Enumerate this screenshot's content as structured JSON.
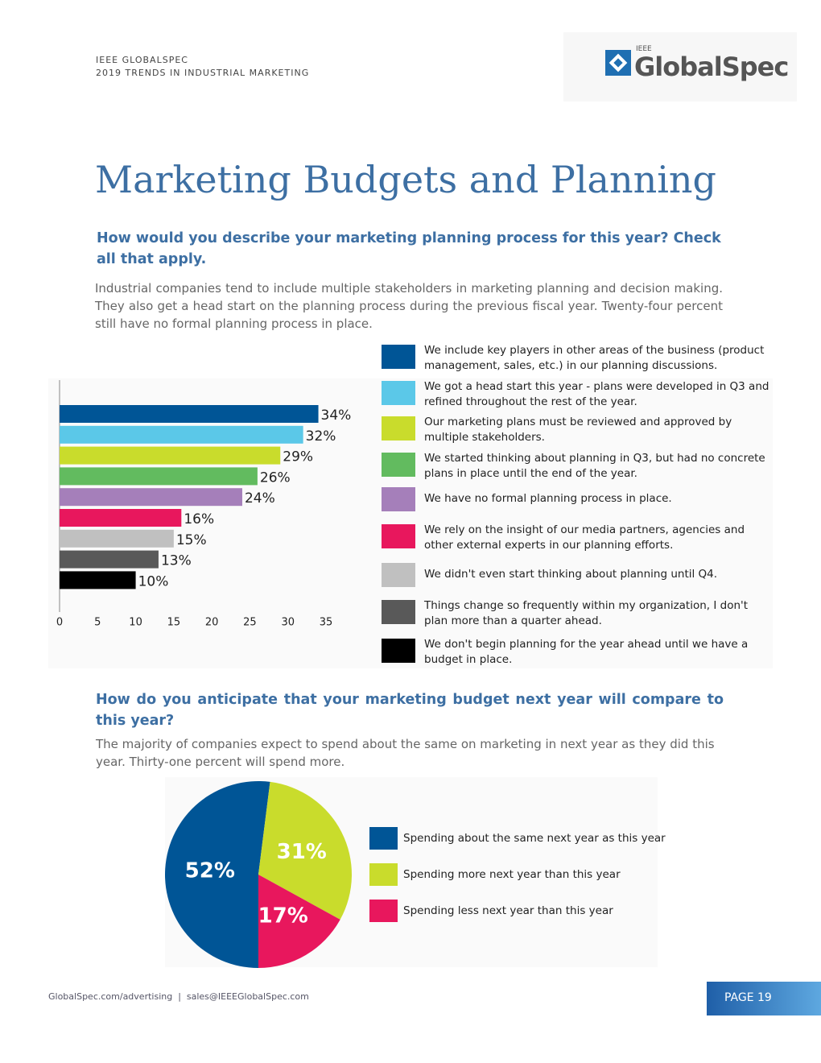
{
  "header": {
    "org": "IEEE GLOBALSPEC",
    "report": "2019 TRENDS IN INDUSTRIAL MARKETING"
  },
  "logo": {
    "small": "IEEE",
    "name": "GlobalSpec"
  },
  "title": "Marketing Budgets and Planning",
  "sections": [
    {
      "question": "How would you describe your marketing planning process for this year? Check all that apply.",
      "text": "Industrial companies tend to include multiple stakeholders in marketing planning and decision making. They also get a head start on the planning process during the previous fiscal year. Twenty-four percent still have no formal planning process in place."
    },
    {
      "question": "How do you anticipate that your marketing budget next year will compare to this year?",
      "text": "The majority of companies expect to spend about the same on marketing in next year as they did this year. Thirty-one percent will spend more."
    }
  ],
  "chart_data": [
    {
      "type": "bar",
      "orientation": "horizontal",
      "categories": [
        "We include key players in other areas of the business (product management, sales, etc.) in our planning discussions.",
        "We got a head start this year - plans were developed in Q3 and refined throughout the rest of the year.",
        "Our marketing plans must be reviewed and approved by multiple stakeholders.",
        "We started thinking about planning in Q3, but had no concrete plans in place until the end of the year.",
        "We have no formal planning process in place.",
        "We rely on the insight of our media partners, agencies and other external experts in our planning efforts.",
        "We didn't even start thinking about planning until Q4.",
        "Things change so frequently within my organization, I don't plan more than a quarter ahead.",
        "We don't begin planning for the year ahead until we have a budget in place."
      ],
      "values": [
        34,
        32,
        29,
        26,
        24,
        16,
        15,
        13,
        10
      ],
      "value_labels": [
        "34%",
        "32%",
        "29%",
        "26%",
        "24%",
        "16%",
        "15%",
        "13%",
        "10%"
      ],
      "colors": [
        "#005596",
        "#5bc8e8",
        "#c9dc2c",
        "#62bb5f",
        "#a57fba",
        "#e8175d",
        "#c0c0c0",
        "#595959",
        "#000000"
      ],
      "xlim": [
        0,
        35
      ],
      "xticks": [
        0,
        5,
        10,
        15,
        20,
        25,
        30,
        35
      ],
      "grid": false
    },
    {
      "type": "pie",
      "categories": [
        "Spending about the same next year as this year",
        "Spending more next year than this year",
        "Spending less next year than this year"
      ],
      "values": [
        52,
        31,
        17
      ],
      "value_labels": [
        "52%",
        "31%",
        "17%"
      ],
      "colors": [
        "#005596",
        "#c9dc2c",
        "#e8175d"
      ]
    }
  ],
  "footer": {
    "links": "GlobalSpec.com/advertising  |  sales@IEEEGlobalSpec.com",
    "page": "PAGE 19"
  }
}
